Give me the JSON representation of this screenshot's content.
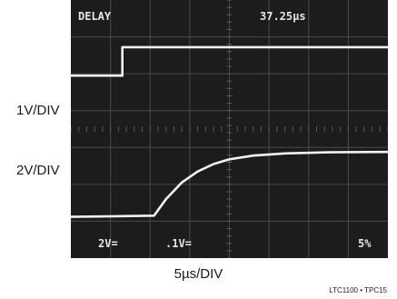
{
  "chart_data": {
    "type": "line",
    "title": "",
    "xlabel": "5µs/DIV",
    "ylabels": [
      "1V/DIV",
      "2V/DIV"
    ],
    "x_divisions": 8,
    "y_divisions": 7,
    "grid": true,
    "screen_text": {
      "top_left": "DELAY",
      "top_right": "37.25µs",
      "bottom_left": "2V=",
      "bottom_mid": ".1V=",
      "bottom_right": "5%"
    },
    "series": [
      {
        "name": "",
        "x": [
          0,
          1.3,
          1.3,
          8
        ],
        "y": [
          4.95,
          4.95,
          5.72,
          5.72
        ]
      },
      {
        "name": "",
        "x": [
          0,
          2.1,
          2.4,
          2.8,
          3.2,
          3.6,
          4.0,
          4.6,
          5.4,
          6.5,
          8
        ],
        "y": [
          1.12,
          1.15,
          1.6,
          2.05,
          2.35,
          2.55,
          2.68,
          2.78,
          2.84,
          2.87,
          2.88
        ]
      }
    ]
  },
  "footer_code": "LTC1100 • TPC15"
}
